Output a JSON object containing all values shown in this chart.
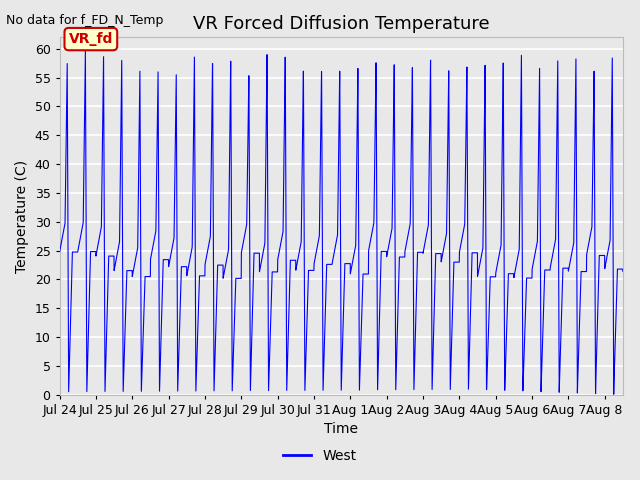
{
  "title": "VR Forced Diffusion Temperature",
  "xlabel": "Time",
  "ylabel": "Temperature (C)",
  "top_left_note": "No data for f_FD_N_Temp",
  "annotation_label": "VR_fd",
  "legend_label": "West",
  "line_color": "#0000ff",
  "annotation_bg": "#ffffcc",
  "annotation_border": "#cc0000",
  "annotation_text_color": "#cc0000",
  "ylim": [
    0,
    62
  ],
  "yticks": [
    0,
    5,
    10,
    15,
    20,
    25,
    30,
    35,
    40,
    45,
    50,
    55,
    60
  ],
  "x_tick_labels": [
    "Jul 24",
    "Jul 25",
    "Jul 26",
    "Jul 27",
    "Jul 28",
    "Jul 29",
    "Jul 30",
    "Jul 31",
    "Aug 1",
    "Aug 2",
    "Aug 3",
    "Aug 4",
    "Aug 5",
    "Aug 6",
    "Aug 7",
    "Aug 8"
  ],
  "bg_color": "#e8e8e8",
  "plot_bg_color": "#e8e8e8",
  "grid_color": "#ffffff",
  "font_size": 10,
  "title_font_size": 13,
  "fig_width": 6.4,
  "fig_height": 4.8,
  "dpi": 100
}
